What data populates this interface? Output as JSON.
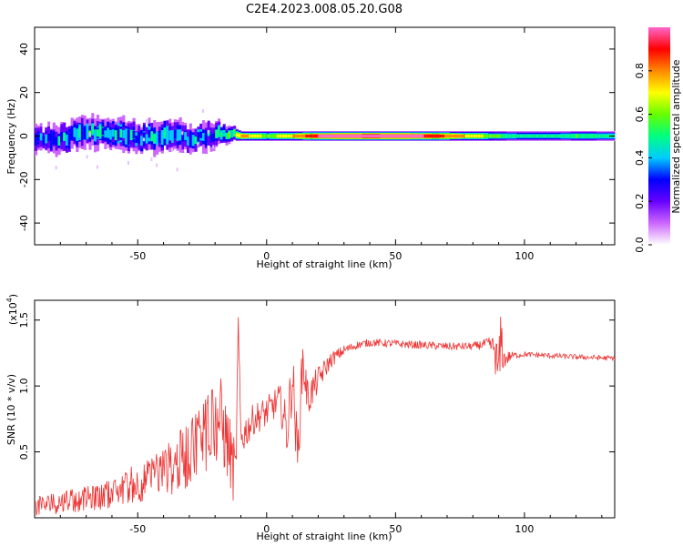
{
  "title": "C2E4.2023.008.05.20.G08",
  "chart_data": [
    {
      "type": "heatmap",
      "xlabel": "Height of straight line (km)",
      "ylabel": "Frequency (Hz)",
      "xlim": [
        -90,
        135
      ],
      "ylim": [
        -50,
        50
      ],
      "x_ticks": [
        -50,
        0,
        50,
        100
      ],
      "y_ticks": [
        -40,
        -20,
        0,
        20,
        40
      ],
      "colorbar": {
        "label": "Normalized spectral amplitude",
        "range": [
          0,
          1
        ],
        "ticks": [
          0.0,
          0.2,
          0.4,
          0.6,
          0.8
        ],
        "colors": [
          "#ffffff",
          "#cc66ff",
          "#6600ff",
          "#0000ff",
          "#00ccff",
          "#00ff80",
          "#66ff00",
          "#ffff00",
          "#ff8800",
          "#ff0000",
          "#ff66cc"
        ]
      },
      "ridge": {
        "x": [
          -90,
          -80,
          -70,
          -60,
          -50,
          -40,
          -30,
          -20,
          -14,
          -10,
          0,
          10,
          20,
          40,
          60,
          80,
          90,
          100,
          110,
          120,
          135
        ],
        "frequency": [
          -2,
          -1,
          2,
          1,
          -1,
          1,
          -2,
          1,
          1,
          0,
          0,
          0,
          0,
          0,
          0,
          0,
          0,
          0,
          0,
          0,
          0
        ],
        "half_width": [
          5,
          6,
          6,
          6,
          6,
          6,
          6,
          5,
          3,
          2,
          2,
          2,
          2,
          2,
          2,
          2,
          2,
          2,
          2,
          2,
          2
        ],
        "amplitude": [
          0.35,
          0.4,
          0.5,
          0.45,
          0.45,
          0.45,
          0.4,
          0.45,
          0.55,
          0.8,
          0.6,
          0.75,
          0.95,
          1.0,
          0.95,
          0.7,
          0.55,
          0.45,
          0.45,
          0.55,
          0.5
        ]
      }
    },
    {
      "type": "line",
      "xlabel": "Height of straight line (km)",
      "ylabel": "SNR (10 * v/v)",
      "y_multiplier": "(x10",
      "y_multiplier_exp": "4",
      "y_multiplier_close": ")",
      "xlim": [
        -90,
        135
      ],
      "ylim": [
        0,
        1.65
      ],
      "x_ticks": [
        -50,
        0,
        50,
        100
      ],
      "y_ticks": [
        0.5,
        1.0,
        1.5
      ],
      "y_tick_labels": [
        "0.5",
        "1.0",
        "1.5"
      ],
      "color": "#ee3333",
      "series": [
        {
          "x": [
            -90,
            -85,
            -80,
            -75,
            -70,
            -65,
            -60,
            -55,
            -50,
            -45,
            -40,
            -35,
            -30,
            -25,
            -22,
            -18,
            -15,
            -12,
            -11,
            -10,
            -5,
            0,
            5,
            8,
            10,
            12,
            14,
            16,
            20,
            25,
            30,
            35,
            40,
            50,
            60,
            70,
            80,
            85,
            88,
            90,
            91,
            92,
            95,
            100,
            110,
            120,
            135
          ],
          "y": [
            0.08,
            0.1,
            0.12,
            0.12,
            0.15,
            0.15,
            0.18,
            0.22,
            0.25,
            0.3,
            0.35,
            0.4,
            0.5,
            0.6,
            0.75,
            0.75,
            0.55,
            0.3,
            1.45,
            0.6,
            0.75,
            0.8,
            0.9,
            0.65,
            1.1,
            0.45,
            1.2,
            0.9,
            1.05,
            1.2,
            1.27,
            1.31,
            1.33,
            1.32,
            1.31,
            1.3,
            1.3,
            1.32,
            1.3,
            1.1,
            1.35,
            1.2,
            1.23,
            1.24,
            1.23,
            1.22,
            1.21
          ],
          "noise": [
            0.08,
            0.08,
            0.09,
            0.09,
            0.09,
            0.1,
            0.1,
            0.12,
            0.14,
            0.16,
            0.2,
            0.22,
            0.28,
            0.32,
            0.34,
            0.34,
            0.3,
            0.25,
            0.1,
            0.15,
            0.12,
            0.12,
            0.12,
            0.2,
            0.25,
            0.2,
            0.2,
            0.15,
            0.1,
            0.06,
            0.04,
            0.03,
            0.03,
            0.03,
            0.03,
            0.03,
            0.03,
            0.04,
            0.08,
            0.25,
            0.25,
            0.08,
            0.03,
            0.02,
            0.02,
            0.02,
            0.02
          ]
        }
      ]
    }
  ]
}
